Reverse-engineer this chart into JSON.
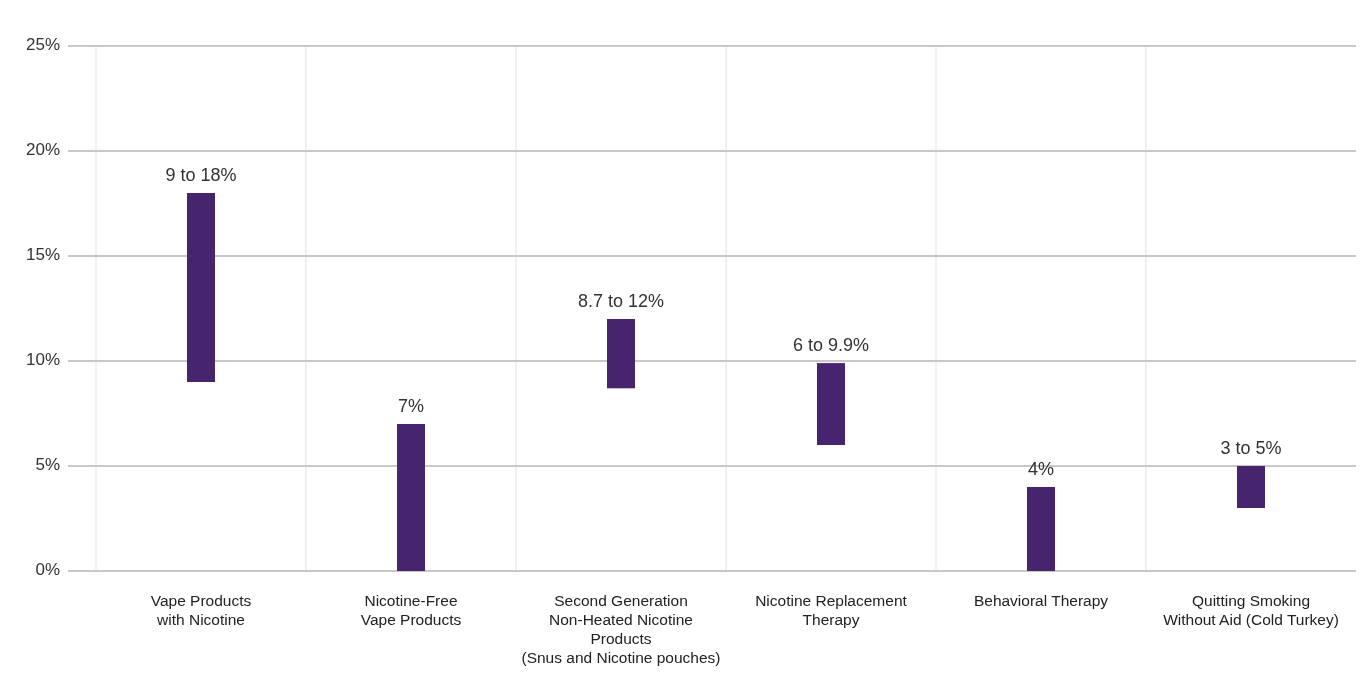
{
  "chart_data": {
    "type": "bar",
    "categories": [
      "Vape Products\nwith Nicotine",
      "Nicotine-Free\nVape Products",
      "Second Generation\nNon-Heated Nicotine\nProducts\n(Snus and Nicotine pouches)",
      "Nicotine Replacement\nTherapy",
      "Behavioral Therapy",
      "Quitting Smoking\nWithout Aid (Cold Turkey)"
    ],
    "base": [
      9,
      0,
      8.7,
      6,
      0,
      3
    ],
    "values": [
      9,
      7,
      3.3,
      3.9,
      4,
      2
    ],
    "annotations": [
      {
        "text": "9 to 18%",
        "x": "Vape Products\nwith Nicotine",
        "y": 18
      },
      {
        "text": "7%",
        "x": "Nicotine-Free\nVape Products",
        "y": 7
      },
      {
        "text": "8.7 to 12%",
        "x": "Second Generation\nNon-Heated Nicotine\nProducts\n(Snus and Nicotine pouches)",
        "y": 12
      },
      {
        "text": "6 to 9.9%",
        "x": "Nicotine Replacement\nTherapy",
        "y": 9.9
      },
      {
        "text": "4%",
        "x": "Behavioral Therapy",
        "y": 4
      },
      {
        "text": "3 to 5%",
        "x": "Quitting Smoking\nWithout Aid (Cold Turkey)",
        "y": 5
      }
    ],
    "color": "#46246e",
    "ylim": [
      0,
      25
    ],
    "yticks": [
      {
        "value": 0,
        "label": "0%"
      },
      {
        "value": 5,
        "label": "5%"
      },
      {
        "value": 10,
        "label": "10%"
      },
      {
        "value": 15,
        "label": "15%"
      },
      {
        "value": 20,
        "label": "20%"
      },
      {
        "value": 25,
        "label": "25%"
      }
    ],
    "grid": true
  }
}
